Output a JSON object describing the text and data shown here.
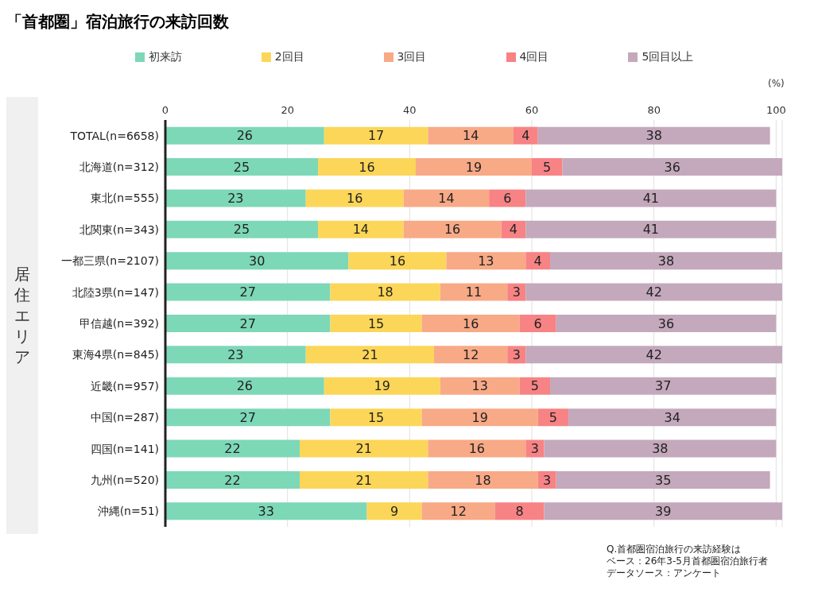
{
  "chart_data": {
    "type": "bar",
    "orientation": "horizontal",
    "stacked": true,
    "title": "「首都圏」宿泊旅行の来訪回数",
    "xlabel": "(%)",
    "ylabel": "居住エリア",
    "categories": [
      "TOTAL(n=6658)",
      "北海道(n=312)",
      "東北(n=555)",
      "北関東(n=343)",
      "一都三県(n=2107)",
      "北陸3県(n=147)",
      "甲信越(n=392)",
      "東海4県(n=845)",
      "近畿(n=957)",
      "中国(n=287)",
      "四国(n=141)",
      "九州(n=520)",
      "沖縄(n=51)"
    ],
    "series": [
      {
        "name": "初来訪",
        "color": "#7dd8b8",
        "values": [
          26,
          25,
          23,
          25,
          30,
          27,
          27,
          23,
          26,
          27,
          22,
          22,
          33
        ]
      },
      {
        "name": "2回目",
        "color": "#fcd658",
        "values": [
          17,
          16,
          16,
          14,
          16,
          18,
          15,
          21,
          19,
          15,
          21,
          21,
          9
        ]
      },
      {
        "name": "3回目",
        "color": "#f8a986",
        "values": [
          14,
          19,
          14,
          16,
          13,
          11,
          16,
          12,
          13,
          19,
          16,
          18,
          12
        ]
      },
      {
        "name": "4回目",
        "color": "#f78385",
        "values": [
          4,
          5,
          6,
          4,
          4,
          3,
          6,
          3,
          5,
          5,
          3,
          3,
          8
        ]
      },
      {
        "name": "5回目以上",
        "color": "#c4a8bc",
        "values": [
          38,
          36,
          41,
          41,
          38,
          42,
          36,
          42,
          37,
          34,
          38,
          35,
          39
        ]
      }
    ],
    "xlim": [
      0,
      101
    ],
    "xticks": [
      0,
      20,
      40,
      60,
      80,
      100
    ],
    "grid": "x",
    "legend": "top",
    "data_labels": true,
    "annotations": [
      "Q.首都圏宿泊旅行の来訪経験は",
      "ベース：26年3-5月首都圏宿泊旅行者",
      "データソース：アンケート"
    ]
  }
}
